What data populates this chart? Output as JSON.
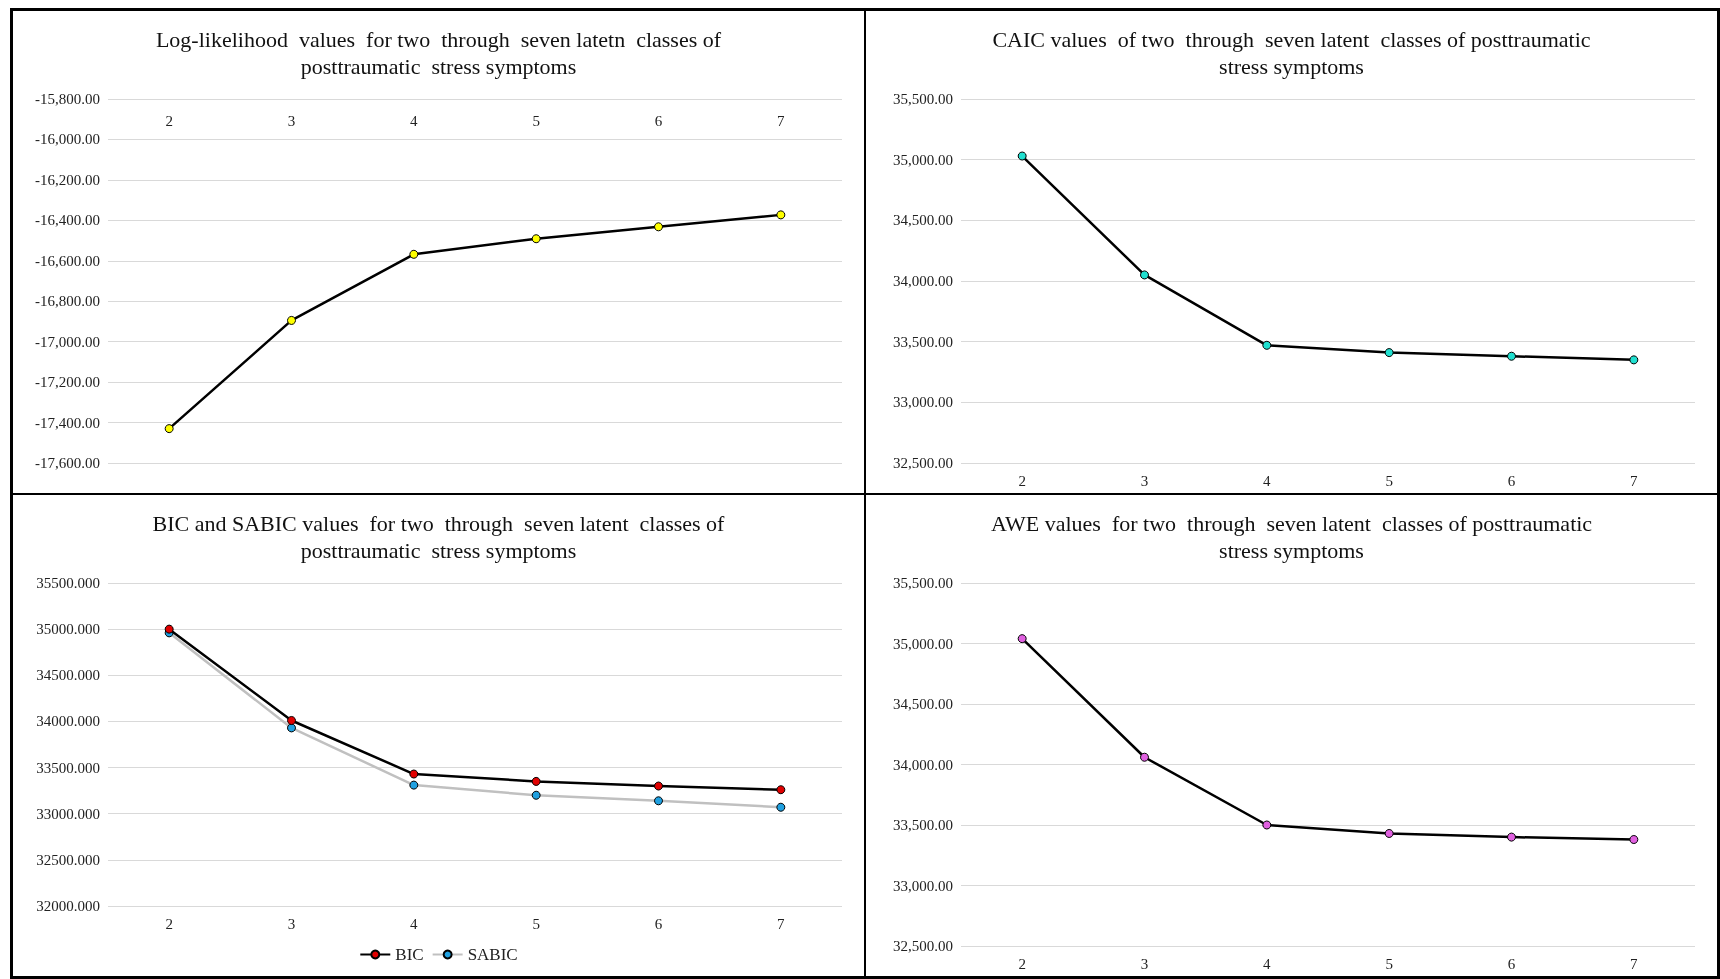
{
  "chart_data": [
    {
      "type": "line",
      "title": "Log-likelihood  values  for two  through  seven latetn  classes of\nposttraumatic  stress symptoms",
      "categories": [
        "2",
        "3",
        "4",
        "5",
        "6",
        "7"
      ],
      "series": [
        {
          "color": "#ffff00",
          "values": [
            -17430,
            -16895,
            -16568,
            -16491,
            -16432,
            -16373
          ]
        }
      ],
      "ylim": [
        -17600,
        -15800
      ],
      "yticks": [
        {
          "value": -17600,
          "label": "-17,600.00"
        },
        {
          "value": -17400,
          "label": "-17,400.00"
        },
        {
          "value": -17200,
          "label": "-17,200.00"
        },
        {
          "value": -17000,
          "label": "-17,000.00"
        },
        {
          "value": -16800,
          "label": "-16,800.00"
        },
        {
          "value": -16600,
          "label": "-16,600.00"
        },
        {
          "value": -16400,
          "label": "-16,400.00"
        },
        {
          "value": -16200,
          "label": "-16,200.00"
        },
        {
          "value": -16000,
          "label": "-16,000.00"
        },
        {
          "value": -15800,
          "label": "-15,800.00"
        }
      ],
      "grid": "y",
      "marker": "circle",
      "legend": false
    },
    {
      "type": "line",
      "title": "CAIC values  of two  through  seven latent  classes of posttraumatic\nstress symptoms",
      "categories": [
        "2",
        "3",
        "4",
        "5",
        "6",
        "7"
      ],
      "series": [
        {
          "color": "#20e0d0",
          "values": [
            35030,
            34050,
            33470,
            33410,
            33380,
            33350
          ]
        }
      ],
      "ylim": [
        32500,
        35500
      ],
      "yticks": [
        {
          "value": 32500,
          "label": "32,500.00"
        },
        {
          "value": 33000,
          "label": "33,000.00"
        },
        {
          "value": 33500,
          "label": "33,500.00"
        },
        {
          "value": 34000,
          "label": "34,000.00"
        },
        {
          "value": 34500,
          "label": "34,500.00"
        },
        {
          "value": 35000,
          "label": "35,000.00"
        },
        {
          "value": 35500,
          "label": "35,500.00"
        }
      ],
      "grid": "y",
      "marker": "circle",
      "legend": false
    },
    {
      "type": "line",
      "title": "BIC and SABIC values  for two  through  seven latent  classes of\nposttraumatic  stress symptoms",
      "categories": [
        "2",
        "3",
        "4",
        "5",
        "6",
        "7"
      ],
      "series": [
        {
          "name": "BIC",
          "color": "#e00000",
          "values": [
            35000,
            34010,
            33430,
            33350,
            33300,
            33260
          ]
        },
        {
          "name": "SABIC",
          "color": "#20a0e0",
          "values": [
            34960,
            33930,
            33310,
            33200,
            33140,
            33070
          ]
        }
      ],
      "ylim": [
        32000,
        35500
      ],
      "yticks": [
        {
          "value": 32000,
          "label": "32000.000"
        },
        {
          "value": 32500,
          "label": "32500.000"
        },
        {
          "value": 33000,
          "label": "33000.000"
        },
        {
          "value": 33500,
          "label": "33500.000"
        },
        {
          "value": 34000,
          "label": "34000.000"
        },
        {
          "value": 34500,
          "label": "34500.000"
        },
        {
          "value": 35000,
          "label": "35000.000"
        },
        {
          "value": 35500,
          "label": "35500.000"
        }
      ],
      "grid": "y",
      "marker": "circle",
      "legend": "bottom"
    },
    {
      "type": "line",
      "title": "AWE values  for two  through  seven latent  classes of posttraumatic\nstress symptoms",
      "categories": [
        "2",
        "3",
        "4",
        "5",
        "6",
        "7"
      ],
      "series": [
        {
          "color": "#e060e0",
          "values": [
            35040,
            34060,
            33500,
            33430,
            33400,
            33380
          ]
        }
      ],
      "ylim": [
        32500,
        35500
      ],
      "yticks": [
        {
          "value": 32500,
          "label": "32,500.00"
        },
        {
          "value": 33000,
          "label": "33,000.00"
        },
        {
          "value": 33500,
          "label": "33,500.00"
        },
        {
          "value": 34000,
          "label": "34,000.00"
        },
        {
          "value": 34500,
          "label": "34,500.00"
        },
        {
          "value": 35000,
          "label": "35,000.00"
        },
        {
          "value": 35500,
          "label": "35,500.00"
        }
      ],
      "grid": "y",
      "marker": "circle",
      "legend": false
    }
  ]
}
